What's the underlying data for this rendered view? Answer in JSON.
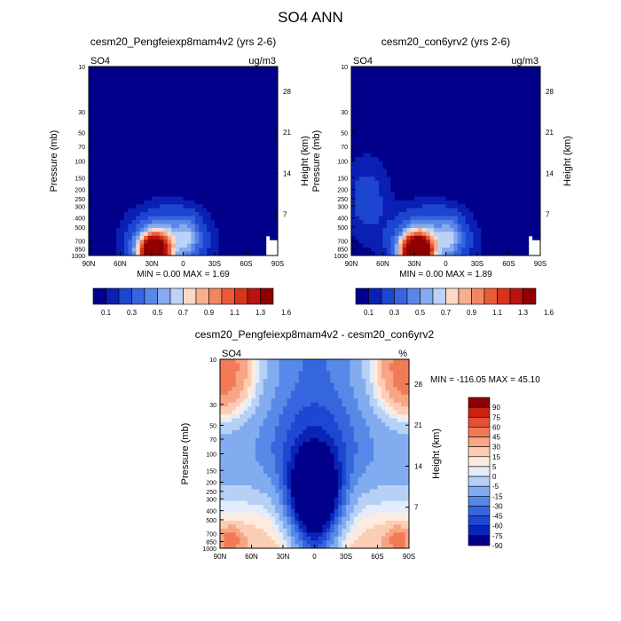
{
  "title": "SO4 ANN",
  "chart_data": [
    {
      "type": "heatmap",
      "title": "cesm20_Pengfeiexp8mam4v2 (yrs 2-6)",
      "left_label": "SO4",
      "right_label": "ug/m3",
      "ylabel": "Pressure (mb)",
      "ylabel2": "Height (km)",
      "x_ticks": [
        "90N",
        "60N",
        "30N",
        "0",
        "30S",
        "60S",
        "90S"
      ],
      "y_ticks": [
        "10",
        "30",
        "50",
        "70",
        "100",
        "150",
        "200",
        "250",
        "300",
        "400",
        "500",
        "700",
        "850",
        "1000"
      ],
      "y2_ticks": [
        "28",
        "21",
        "14",
        "7"
      ],
      "stats": "MIN =  0.00  MAX =  1.69",
      "colorbar_labels": [
        "0.1",
        "0.3",
        "0.5",
        "0.7",
        "0.9",
        "1.1",
        "1.3",
        "1.6"
      ],
      "min": 0.0,
      "max": 1.69
    },
    {
      "type": "heatmap",
      "title": "cesm20_con6yrv2 (yrs 2-6)",
      "left_label": "SO4",
      "right_label": "ug/m3",
      "ylabel": "Pressure (mb)",
      "ylabel2": "Height (km)",
      "x_ticks": [
        "90N",
        "60N",
        "30N",
        "0",
        "30S",
        "60S",
        "90S"
      ],
      "y_ticks": [
        "10",
        "30",
        "50",
        "70",
        "100",
        "150",
        "200",
        "250",
        "300",
        "400",
        "500",
        "700",
        "850",
        "1000"
      ],
      "y2_ticks": [
        "28",
        "21",
        "14",
        "7"
      ],
      "stats": "MIN =  0.00  MAX =  1.89",
      "colorbar_labels": [
        "0.1",
        "0.3",
        "0.5",
        "0.7",
        "0.9",
        "1.1",
        "1.3",
        "1.6"
      ],
      "min": 0.0,
      "max": 1.89
    },
    {
      "type": "heatmap",
      "title": "cesm20_Pengfeiexp8mam4v2 - cesm20_con6yrv2",
      "left_label": "SO4",
      "right_label": "%",
      "ylabel": "Pressure (mb)",
      "ylabel2": "Height (km)",
      "x_ticks": [
        "90N",
        "60N",
        "30N",
        "0",
        "30S",
        "60S",
        "90S"
      ],
      "y_ticks": [
        "10",
        "30",
        "50",
        "70",
        "100",
        "150",
        "200",
        "250",
        "300",
        "400",
        "500",
        "700",
        "850",
        "1000"
      ],
      "y2_ticks": [
        "28",
        "21",
        "14",
        "7"
      ],
      "stats": "MIN = -116.05  MAX =  45.10",
      "colorbar_labels": [
        "90",
        "75",
        "60",
        "45",
        "30",
        "15",
        "5",
        "0",
        "-5",
        "-15",
        "-30",
        "-45",
        "-60",
        "-75",
        "-90"
      ],
      "min": -116.05,
      "max": 45.1
    }
  ],
  "colors": {
    "seq": [
      "#00008b",
      "#0a1fb4",
      "#1c46d0",
      "#3764df",
      "#5a86e9",
      "#87aaf0",
      "#bcd2f6",
      "#fcd9c6",
      "#f9ae8e",
      "#f38661",
      "#ea5b37",
      "#d73419",
      "#b8130e",
      "#8f0000"
    ],
    "div": [
      "#00008b",
      "#0a24b7",
      "#1e47d2",
      "#3666dd",
      "#5689e8",
      "#82acf0",
      "#b6d0f6",
      "#e2ecfb",
      "#fdebdf",
      "#fccdb5",
      "#f8a585",
      "#f27b57",
      "#e35032",
      "#c9230f",
      "#8f0000"
    ]
  }
}
